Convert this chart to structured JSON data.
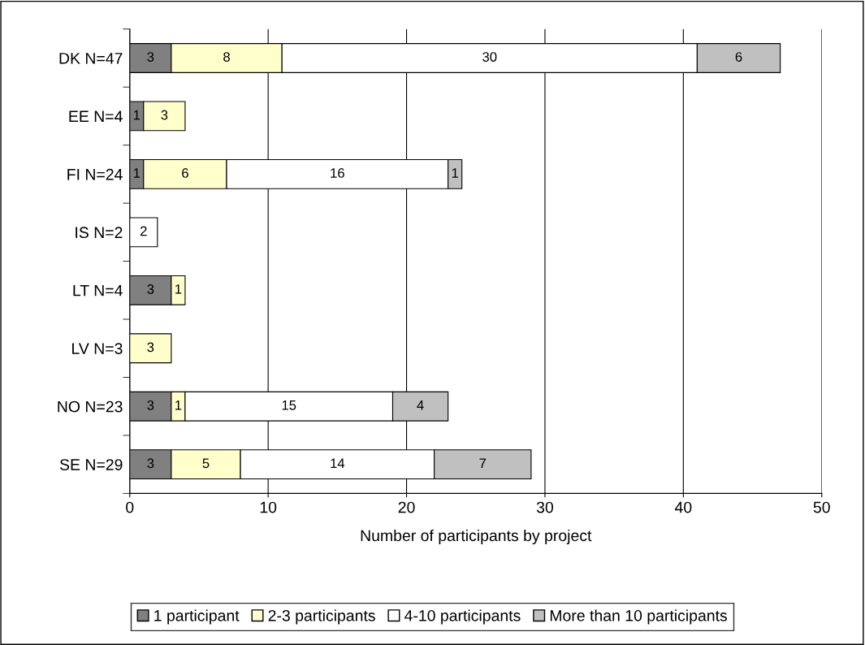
{
  "chart_data": {
    "type": "bar",
    "orientation": "horizontal",
    "stacked": true,
    "xlabel": "Number of participants by project",
    "categories": [
      "DK N=47",
      "EE N=4",
      "FI N=24",
      "IS N=2",
      "LT N=4",
      "LV N=3",
      "NO N=23",
      "SE N=29"
    ],
    "series": [
      {
        "name": "1 participant",
        "color": "#808080",
        "values": [
          3,
          1,
          1,
          null,
          3,
          null,
          3,
          3
        ]
      },
      {
        "name": "2-3 participants",
        "color": "#ffffcc",
        "values": [
          8,
          3,
          6,
          null,
          1,
          3,
          1,
          5
        ]
      },
      {
        "name": "4-10 participants",
        "color": "#ffffff",
        "values": [
          30,
          null,
          16,
          2,
          null,
          null,
          15,
          14
        ]
      },
      {
        "name": "More than 10 participants",
        "color": "#c0c0c0",
        "values": [
          6,
          null,
          1,
          null,
          null,
          null,
          4,
          7
        ]
      }
    ],
    "xlim": [
      0,
      50
    ],
    "xticks": [
      0,
      10,
      20,
      30,
      40,
      50
    ],
    "grid": "x",
    "legend": "bottom",
    "data_labels": true
  }
}
